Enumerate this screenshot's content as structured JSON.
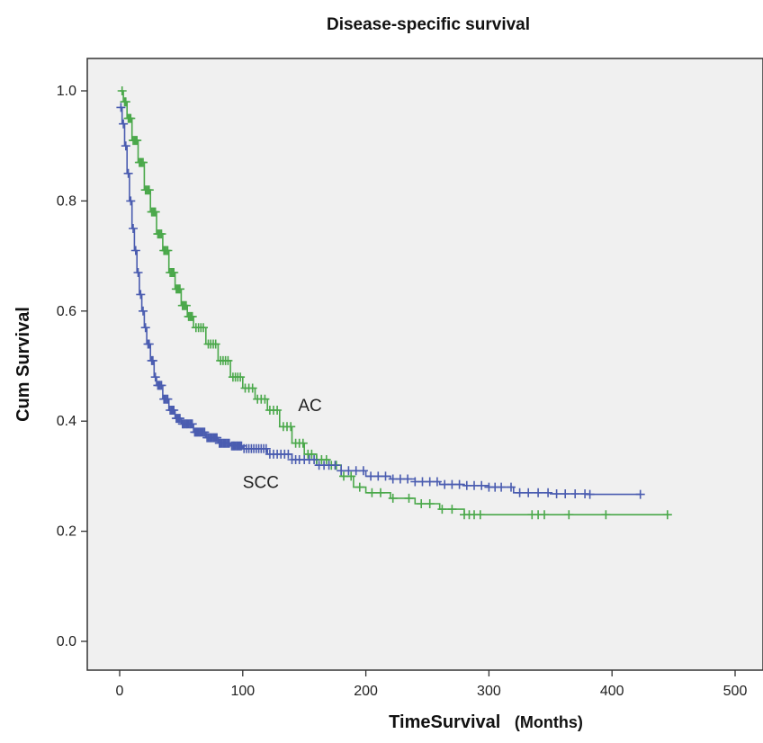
{
  "chart_data": {
    "type": "line",
    "title": "Disease-specific survival",
    "xlabel_main": "TimeSurvival",
    "xlabel_unit": "(Months)",
    "ylabel": "Cum Survival",
    "xlim": [
      -20,
      520
    ],
    "ylim": [
      -0.05,
      1.06
    ],
    "xticks": [
      0,
      100,
      200,
      300,
      400,
      500
    ],
    "yticks": [
      0.0,
      0.2,
      0.4,
      0.6,
      0.8,
      1.0
    ],
    "xtick_labels": [
      "0",
      "100",
      "200",
      "300",
      "400",
      "500"
    ],
    "ytick_labels": [
      "0.0",
      "0.2",
      "0.4",
      "0.6",
      "0.8",
      "1.0"
    ],
    "grid": false,
    "background": "#f0f0f0",
    "series": [
      {
        "name": "AC",
        "color": "#4aa84a",
        "x": [
          0,
          3,
          6,
          10,
          15,
          20,
          25,
          30,
          35,
          40,
          45,
          50,
          55,
          60,
          70,
          80,
          90,
          100,
          110,
          120,
          130,
          140,
          150,
          160,
          170,
          180,
          190,
          200,
          220,
          240,
          260,
          280,
          300,
          350,
          400,
          445
        ],
        "y": [
          1.0,
          0.98,
          0.95,
          0.91,
          0.87,
          0.82,
          0.78,
          0.74,
          0.71,
          0.67,
          0.64,
          0.61,
          0.59,
          0.57,
          0.54,
          0.51,
          0.48,
          0.46,
          0.44,
          0.42,
          0.39,
          0.36,
          0.34,
          0.33,
          0.32,
          0.3,
          0.28,
          0.27,
          0.26,
          0.25,
          0.24,
          0.23,
          0.23,
          0.23,
          0.23,
          0.23
        ],
        "censor_x": [
          2,
          4,
          5,
          7,
          8,
          9,
          11,
          12,
          13,
          14,
          16,
          17,
          18,
          19,
          21,
          22,
          23,
          24,
          26,
          27,
          28,
          29,
          31,
          32,
          33,
          34,
          36,
          37,
          38,
          39,
          41,
          42,
          43,
          44,
          46,
          47,
          48,
          49,
          51,
          52,
          53,
          54,
          56,
          57,
          58,
          59,
          62,
          64,
          66,
          68,
          72,
          74,
          76,
          78,
          82,
          84,
          86,
          88,
          92,
          94,
          96,
          98,
          102,
          105,
          108,
          112,
          115,
          118,
          122,
          125,
          128,
          133,
          136,
          139,
          143,
          146,
          149,
          153,
          156,
          160,
          164,
          168,
          172,
          176,
          182,
          188,
          195,
          205,
          212,
          222,
          235,
          245,
          252,
          262,
          270,
          280,
          284,
          288,
          293,
          335,
          340,
          345,
          365,
          395,
          445
        ]
      },
      {
        "name": "SCC",
        "color": "#4a5cb0",
        "x": [
          0,
          2,
          4,
          6,
          8,
          10,
          12,
          14,
          16,
          18,
          20,
          22,
          25,
          28,
          30,
          35,
          40,
          45,
          50,
          60,
          70,
          80,
          90,
          100,
          120,
          140,
          160,
          180,
          200,
          220,
          240,
          260,
          280,
          300,
          320,
          350,
          380,
          423
        ],
        "y": [
          0.97,
          0.94,
          0.9,
          0.85,
          0.8,
          0.75,
          0.71,
          0.67,
          0.63,
          0.6,
          0.57,
          0.54,
          0.51,
          0.48,
          0.465,
          0.44,
          0.42,
          0.405,
          0.395,
          0.38,
          0.37,
          0.36,
          0.355,
          0.35,
          0.34,
          0.33,
          0.32,
          0.31,
          0.3,
          0.295,
          0.29,
          0.285,
          0.283,
          0.28,
          0.27,
          0.268,
          0.267,
          0.267
        ],
        "censor_x": [
          1,
          3,
          5,
          7,
          9,
          11,
          13,
          15,
          17,
          19,
          21,
          23,
          24,
          26,
          27,
          29,
          31,
          32,
          33,
          34,
          36,
          37,
          38,
          39,
          41,
          42,
          43,
          44,
          46,
          47,
          48,
          49,
          51,
          52,
          53,
          54,
          55,
          56,
          57,
          58,
          59,
          61,
          62,
          63,
          64,
          65,
          66,
          67,
          68,
          69,
          71,
          72,
          73,
          74,
          75,
          76,
          77,
          78,
          79,
          81,
          82,
          83,
          84,
          85,
          86,
          87,
          88,
          89,
          91,
          92,
          93,
          94,
          95,
          96,
          97,
          98,
          99,
          101,
          103,
          105,
          107,
          109,
          111,
          113,
          115,
          117,
          119,
          122,
          125,
          128,
          131,
          134,
          137,
          140,
          143,
          146,
          150,
          154,
          158,
          162,
          166,
          170,
          175,
          180,
          186,
          192,
          198,
          204,
          210,
          216,
          222,
          228,
          234,
          240,
          246,
          252,
          258,
          264,
          270,
          276,
          282,
          288,
          294,
          300,
          305,
          310,
          318,
          325,
          332,
          340,
          348,
          355,
          362,
          370,
          378,
          382,
          423
        ]
      }
    ],
    "annotations": [
      {
        "text": "AC",
        "x": 145,
        "y": 0.43
      },
      {
        "text": "SCC",
        "x": 100,
        "y": 0.29
      }
    ]
  }
}
